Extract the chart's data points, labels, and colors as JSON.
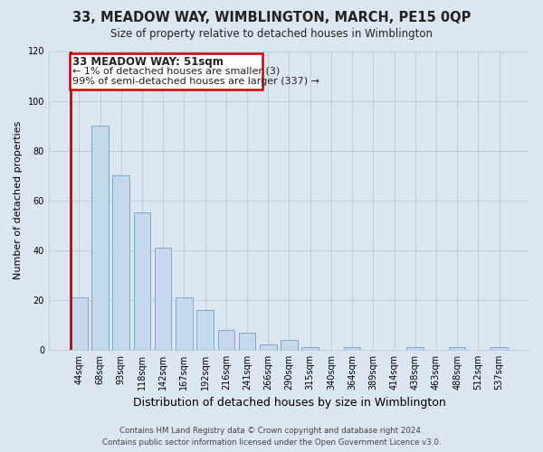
{
  "title": "33, MEADOW WAY, WIMBLINGTON, MARCH, PE15 0QP",
  "subtitle": "Size of property relative to detached houses in Wimblington",
  "xlabel": "Distribution of detached houses by size in Wimblington",
  "ylabel": "Number of detached properties",
  "categories": [
    "44sqm",
    "68sqm",
    "93sqm",
    "118sqm",
    "142sqm",
    "167sqm",
    "192sqm",
    "216sqm",
    "241sqm",
    "266sqm",
    "290sqm",
    "315sqm",
    "340sqm",
    "364sqm",
    "389sqm",
    "414sqm",
    "438sqm",
    "463sqm",
    "488sqm",
    "512sqm",
    "537sqm"
  ],
  "values": [
    21,
    90,
    70,
    55,
    41,
    21,
    16,
    8,
    7,
    2,
    4,
    1,
    0,
    1,
    0,
    0,
    1,
    0,
    1,
    0,
    1
  ],
  "bar_color": "#c5d8ec",
  "bar_edge_color": "#7aaac8",
  "highlight_color": "#cc0000",
  "ylim": [
    0,
    120
  ],
  "yticks": [
    0,
    20,
    40,
    60,
    80,
    100,
    120
  ],
  "annotation_title": "33 MEADOW WAY: 51sqm",
  "annotation_line1": "← 1% of detached houses are smaller (3)",
  "annotation_line2": "99% of semi-detached houses are larger (337) →",
  "footer_line1": "Contains HM Land Registry data © Crown copyright and database right 2024.",
  "footer_line2": "Contains public sector information licensed under the Open Government Licence v3.0.",
  "bg_color": "#dce6f0",
  "plot_bg_color": "#dce6f0",
  "grid_color": "#b8c8d8"
}
